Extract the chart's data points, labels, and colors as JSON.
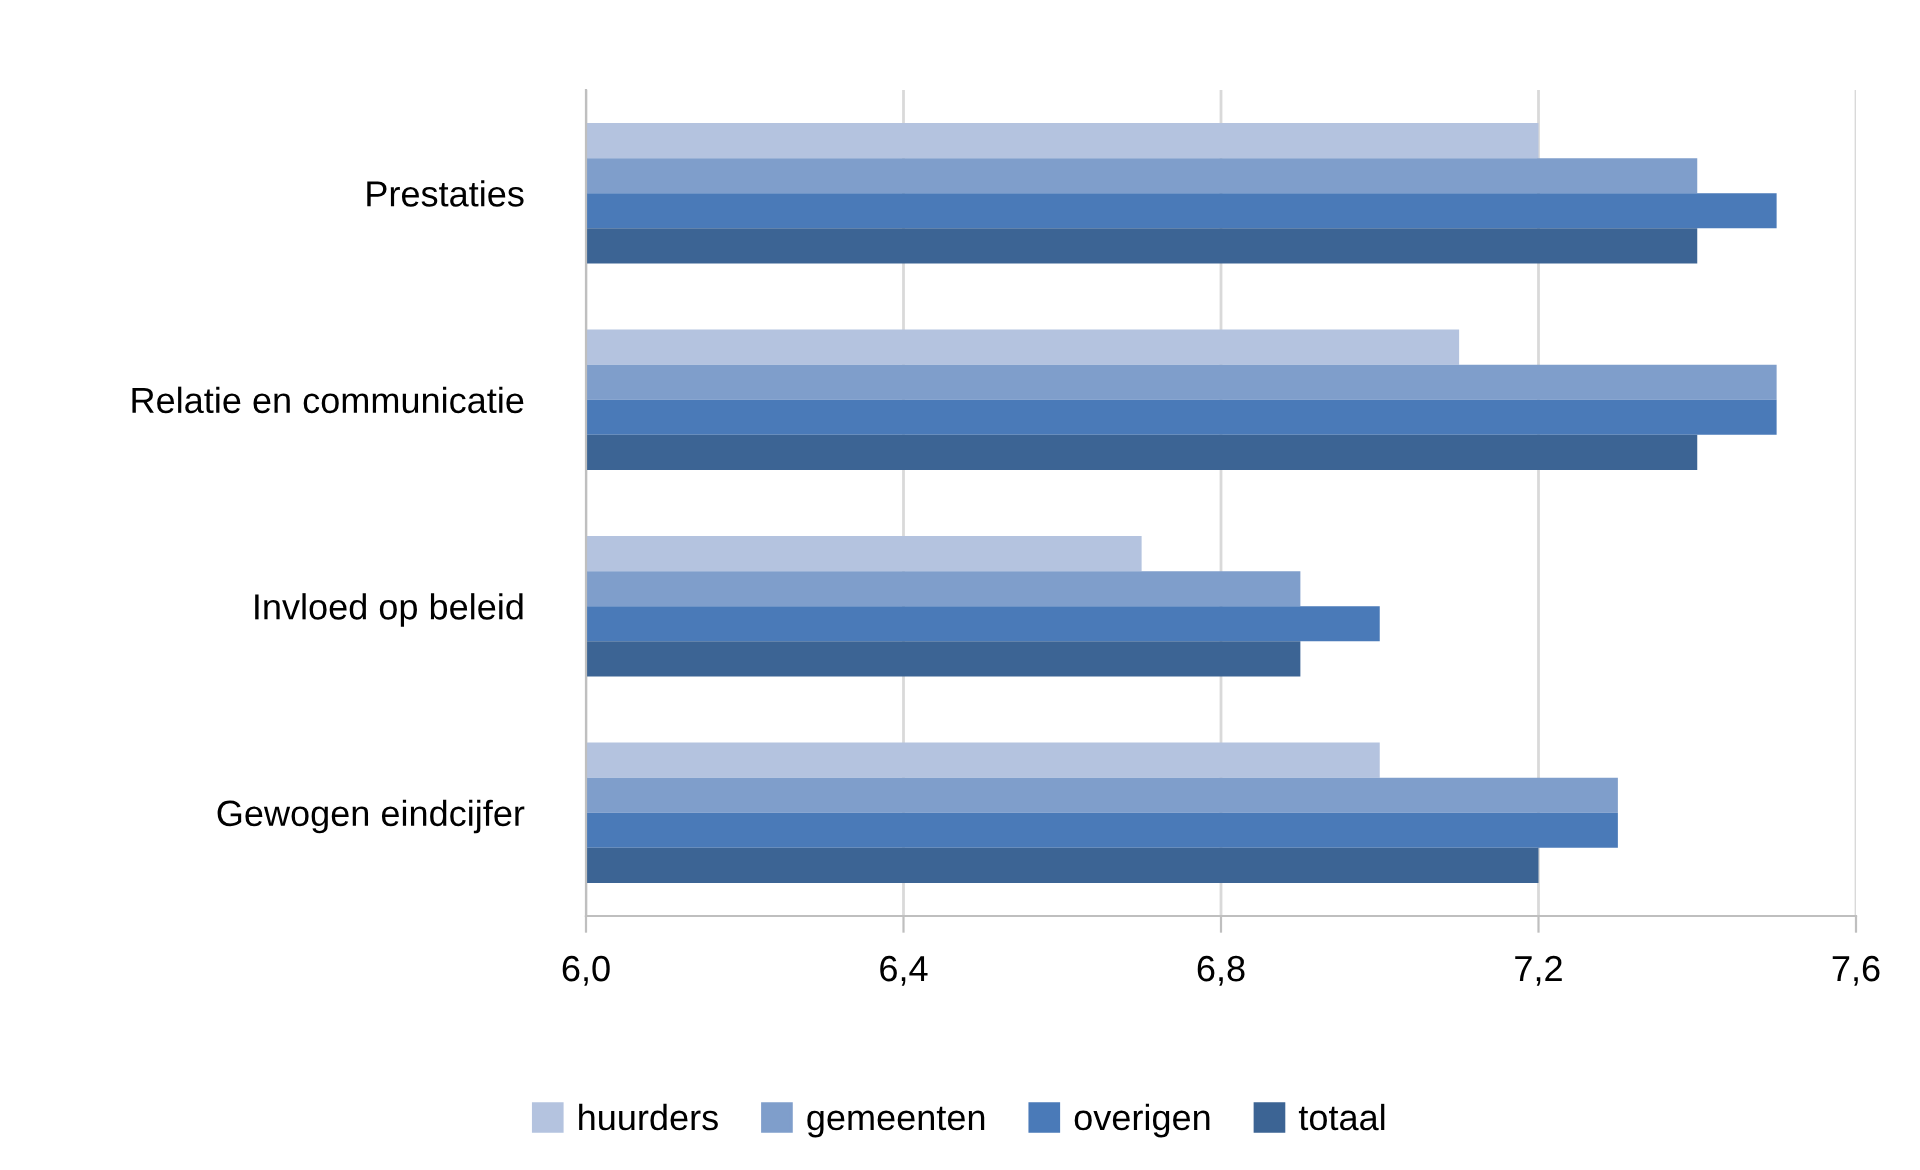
{
  "chart_data": {
    "type": "bar",
    "orientation": "horizontal",
    "categories": [
      "Prestaties",
      "Relatie en communicatie",
      "Invloed op beleid",
      "Gewogen eindcijfer"
    ],
    "series": [
      {
        "name": "huurders",
        "color": "#b4c3df",
        "values": [
          7.2,
          7.1,
          6.7,
          7.0
        ]
      },
      {
        "name": "gemeenten",
        "color": "#7f9ecb",
        "values": [
          7.4,
          7.5,
          6.9,
          7.3
        ]
      },
      {
        "name": "overigen",
        "color": "#4a7ab8",
        "values": [
          7.5,
          7.5,
          7.0,
          7.3
        ]
      },
      {
        "name": "totaal",
        "color": "#3c6494",
        "values": [
          7.4,
          7.4,
          6.9,
          7.2
        ]
      }
    ],
    "xlim": [
      6.0,
      7.6
    ],
    "xticks": [
      {
        "value": 6.0,
        "label": "6,0"
      },
      {
        "value": 6.4,
        "label": "6,4"
      },
      {
        "value": 6.8,
        "label": "6,8"
      },
      {
        "value": 7.2,
        "label": "7,2"
      },
      {
        "value": 7.6,
        "label": "7,6"
      }
    ],
    "grid": "x",
    "legend": "bottom"
  }
}
